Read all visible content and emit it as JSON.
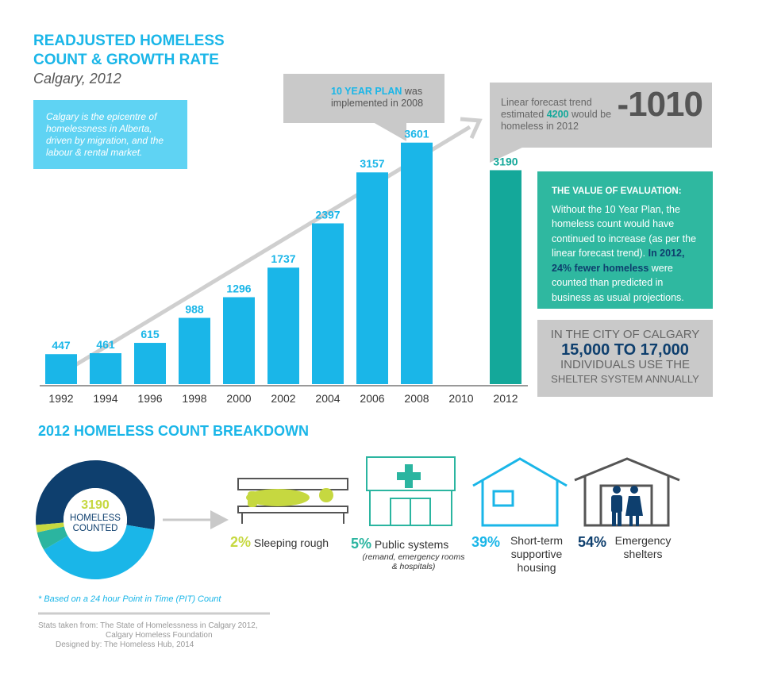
{
  "header": {
    "title": "READJUSTED HOMELESS COUNT & GROWTH RATE",
    "subtitle": "Calgary, 2012"
  },
  "intro": "Calgary is the epicentre of homelessness in Alberta, driven by migration, and the labour & rental market.",
  "plan_note": {
    "highlight": "10 YEAR PLAN",
    "text": "was implemented in 2008"
  },
  "forecast": {
    "text_1": "Linear forecast trend estimated",
    "highlight": 4200,
    "text_2": "would be homeless in 2012",
    "difference": -1010
  },
  "evaluation": {
    "heading": "THE VALUE OF EVALUATION:",
    "text_1": "Without the 10 Year Plan, the homeless count would have continued to increase (as per the linear forecast trend).",
    "highlight": "In 2012, 24% fewer homeless",
    "text_2": "were counted than predicted in business as usual projections."
  },
  "shelter": {
    "line_1": "IN THE CITY OF CALGARY",
    "emphasis": "15,000 TO 17,000",
    "line_2": "INDIVIDUALS USE THE",
    "line_3": "SHELTER SYSTEM ANNUALLY"
  },
  "chart_data": [
    {
      "type": "bar",
      "categories": [
        "1992",
        "1994",
        "1996",
        "1998",
        "2000",
        "2002",
        "2004",
        "2006",
        "2008",
        "2010",
        "2012"
      ],
      "values": [
        447,
        461,
        615,
        988,
        1296,
        1737,
        2397,
        3157,
        3601,
        null,
        3190
      ],
      "colors": [
        "#1ab6e8",
        "#1ab6e8",
        "#1ab6e8",
        "#1ab6e8",
        "#1ab6e8",
        "#1ab6e8",
        "#1ab6e8",
        "#1ab6e8",
        "#1ab6e8",
        "#1ab6e8",
        "#14a89a"
      ],
      "ylim": [
        0,
        4000
      ]
    },
    {
      "type": "pie",
      "title": "2012 HOMELESS COUNT BREAKDOWN",
      "center_value": 3190,
      "center_label": "HOMELESS COUNTED",
      "categories": [
        "Sleeping rough",
        "Public systems",
        "Short-term supportive housing",
        "Emergency shelters"
      ],
      "category_notes": [
        null,
        "(remand, emergency rooms & hospitals)",
        null,
        null
      ],
      "values": [
        2,
        5,
        39,
        54
      ],
      "value_labels": [
        "2%",
        "5%",
        "39%",
        "54%"
      ],
      "colors": [
        "#c6d840",
        "#2bb5a0",
        "#1ab6e8",
        "#0e3f6e"
      ]
    }
  ],
  "footnote": "* Based on a 24 hour Point in Time (PIT) Count",
  "credits": {
    "source_1": "Stats taken from: The State of Homelessness in Calgary 2012,",
    "source_2": "Calgary Homeless Foundation",
    "designer": "Designed by: The Homeless Hub, 2014"
  }
}
